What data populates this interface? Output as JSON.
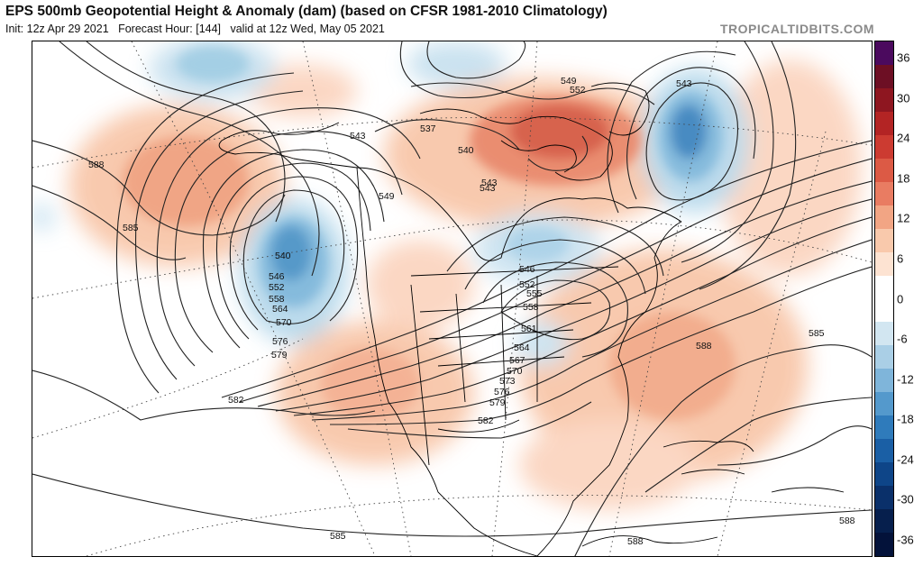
{
  "header": {
    "title": "EPS 500mb Geopotential Height & Anomaly (dam) (based on CFSR 1981-2010 Climatology)",
    "init_label": "Init: 12z Apr 29 2021",
    "forecast_hour_label": "Forecast Hour: [144]",
    "valid_label": "valid at 12z Wed, May 05 2021",
    "watermark": "TROPICALTIDBITS.COM"
  },
  "colorbar": {
    "ticks": [
      "36",
      "30",
      "24",
      "18",
      "12",
      "6",
      "0",
      "-6",
      "-12",
      "-18",
      "-24",
      "-30",
      "-36"
    ],
    "colors": [
      "#4b0a5e",
      "#6d0f24",
      "#8e1620",
      "#b32424",
      "#cc3b31",
      "#dc5a45",
      "#e97c62",
      "#f2a584",
      "#f9c9ac",
      "#fde3d2",
      "#ffffff",
      "#ffffff",
      "#d2e6f1",
      "#aacfe6",
      "#7fb5da",
      "#5499cc",
      "#2f7bbb",
      "#1a5fa5",
      "#0e4588",
      "#0a306a",
      "#061f4d",
      "#03123a"
    ]
  },
  "map": {
    "contour_labels": [
      "588",
      "585",
      "543",
      "549",
      "552",
      "537",
      "540",
      "543",
      "546",
      "552",
      "558",
      "564",
      "570",
      "576",
      "579",
      "582",
      "549",
      "546",
      "552",
      "555",
      "558",
      "561",
      "564",
      "567",
      "570",
      "573",
      "576",
      "579",
      "582",
      "543",
      "588",
      "585",
      "588",
      "588",
      "585",
      "540",
      "543"
    ],
    "colors": {
      "positive_anomaly": "#f4a582",
      "strong_positive": "#d6604d",
      "negative_anomaly": "#92c5de",
      "strong_negative": "#4393c3",
      "contour": "#222222",
      "coast": "#000000"
    }
  }
}
